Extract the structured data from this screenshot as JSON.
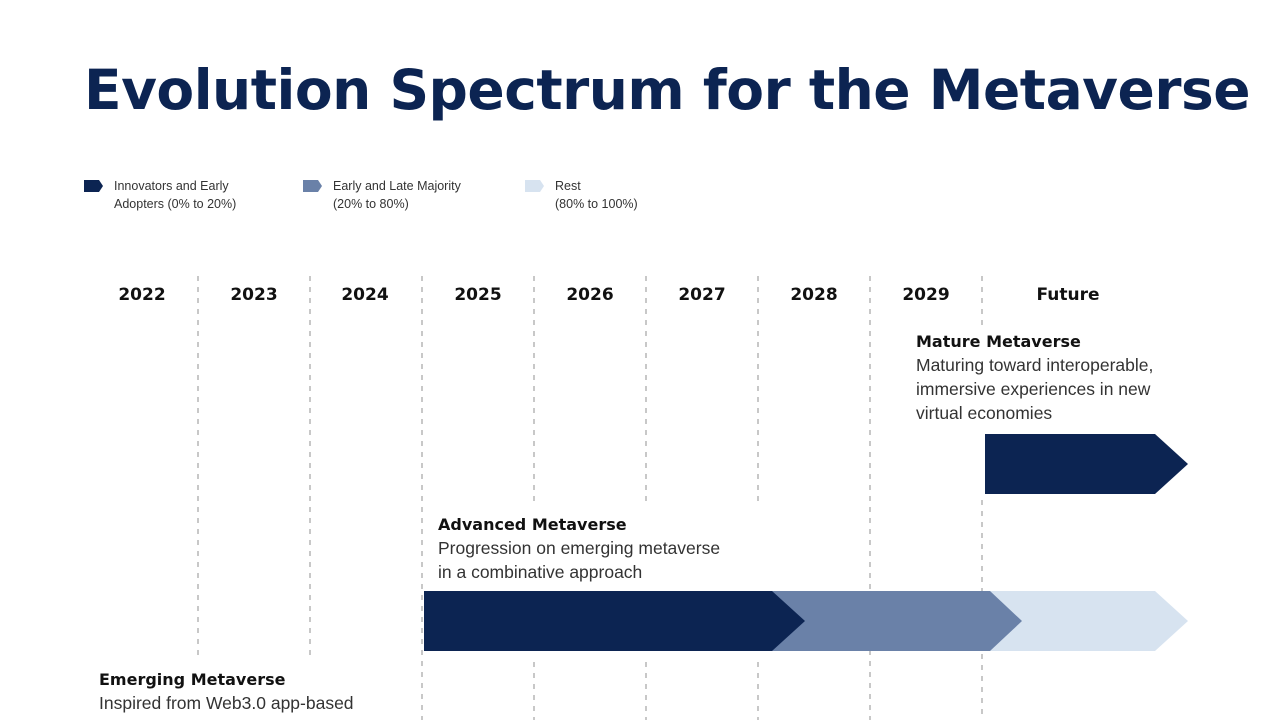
{
  "title": "Evolution Spectrum for the Metaverse",
  "legend": [
    {
      "line1": "Innovators and Early",
      "line2": "Adopters (0% to 20%)",
      "color": "#0c2452"
    },
    {
      "line1": "Early and Late Majority",
      "line2": "(20% to 80%)",
      "color": "#6a81a8"
    },
    {
      "line1": "Rest",
      "line2": "(80% to 100%)",
      "color": "#d7e3f0"
    }
  ],
  "years": [
    "2022",
    "2023",
    "2024",
    "2025",
    "2026",
    "2027",
    "2028",
    "2029",
    "Future"
  ],
  "stages": {
    "mature": {
      "title": "Mature Metaverse",
      "desc_lines": [
        "Maturing toward interoperable,",
        "immersive experiences in new",
        "virtual economies"
      ]
    },
    "advanced": {
      "title": "Advanced Metaverse",
      "desc_lines": [
        "Progression on emerging metaverse",
        "in a combinative approach"
      ]
    },
    "emerging": {
      "title": "Emerging Metaverse",
      "desc_lines": [
        "Inspired from Web3.0 app-based"
      ]
    }
  },
  "colors": {
    "title": "#0c2452",
    "dark": "#0c2452",
    "mid": "#6a81a8",
    "light": "#d7e3f0",
    "divider": "#aaaaaa"
  }
}
